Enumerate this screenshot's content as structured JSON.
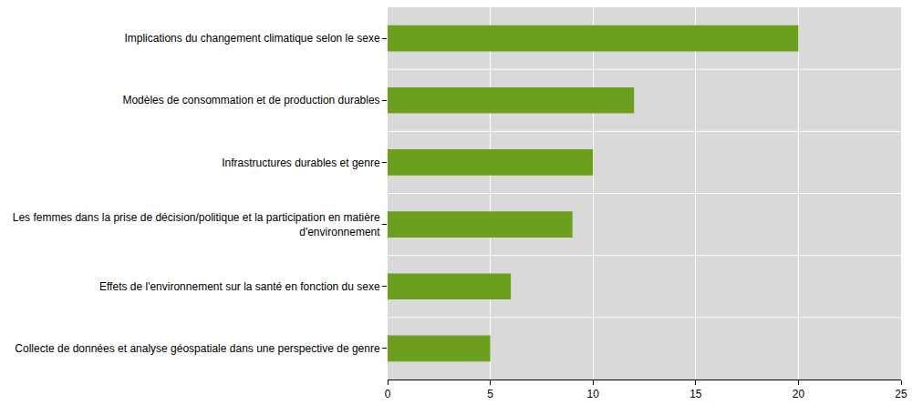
{
  "chart_data": {
    "type": "bar",
    "orientation": "horizontal",
    "categories": [
      "Implications du changement climatique selon le sexe",
      "Modèles de consommation et de production durables",
      "Infrastructures durables et genre",
      "Les femmes dans la prise de décision/politique et la participation en matière d'environnement",
      "Effets de l'environnement sur la santé en fonction du sexe",
      "Collecte de données et analyse géospatiale dans une perspective de genre"
    ],
    "values": [
      20,
      12,
      10,
      9,
      6,
      5
    ],
    "color": "#6c9f1e",
    "xlim": [
      0,
      25
    ],
    "xticks": [
      0,
      5,
      10,
      15,
      20,
      25
    ],
    "grid": true
  }
}
